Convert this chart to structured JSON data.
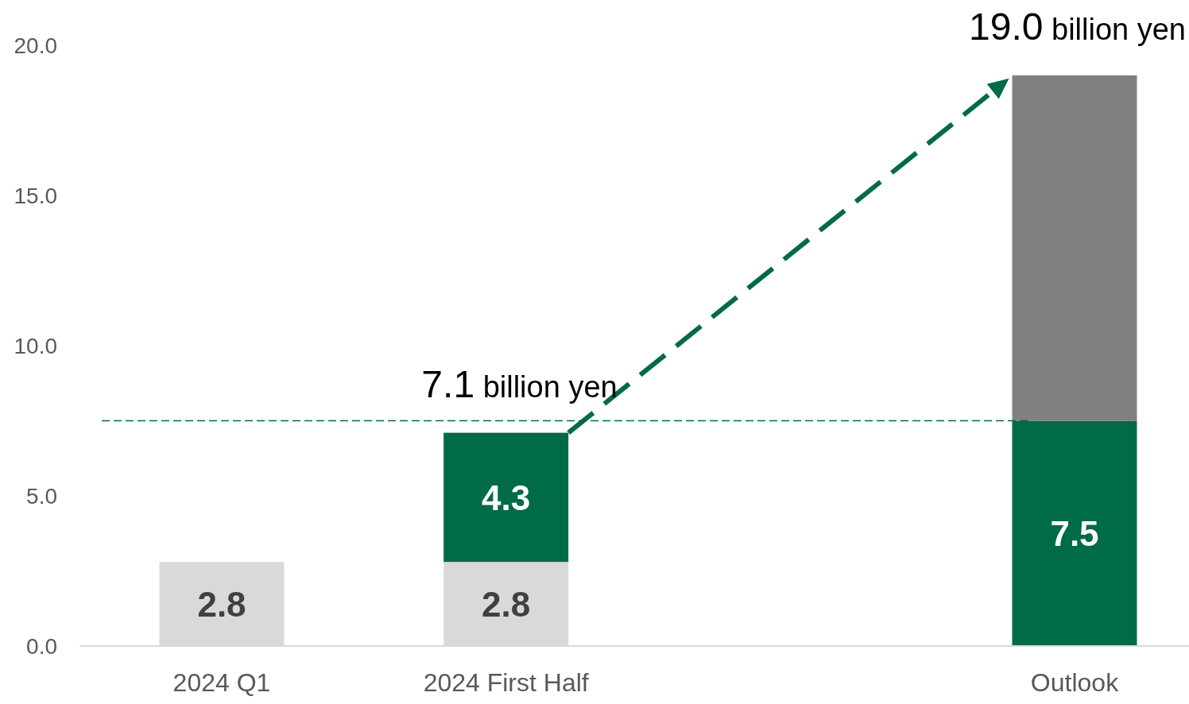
{
  "chart_data": {
    "type": "bar",
    "stacked": true,
    "categories": [
      "2024 Q1",
      "2024 First Half",
      null,
      "Outlook"
    ],
    "series": [
      {
        "color": "#d9d9d9",
        "values": [
          2.8,
          2.8,
          null,
          null
        ],
        "value_labels": [
          "2.8",
          "2.8",
          null,
          null
        ]
      },
      {
        "color": "#006b47",
        "values": [
          null,
          4.3,
          null,
          7.5
        ],
        "value_labels": [
          null,
          "4.3",
          null,
          "7.5"
        ]
      },
      {
        "color": "#808080",
        "values": [
          null,
          null,
          null,
          11.5
        ],
        "value_labels": [
          null,
          null,
          null,
          null
        ]
      }
    ],
    "totals": [
      null,
      "7.1 billion yen",
      null,
      "19.0 billion yen"
    ],
    "ylim": [
      0,
      20
    ],
    "yticks": [
      {
        "value": 0,
        "label": "0.0"
      },
      {
        "value": 5,
        "label": "5.0"
      },
      {
        "value": 10,
        "label": "10.0"
      },
      {
        "value": 15,
        "label": "15.0"
      },
      {
        "value": 20,
        "label": "20.0"
      }
    ],
    "ref_lines": [
      {
        "axis": "y",
        "value": 7.5,
        "color": "#006b47",
        "line_style": "dashed"
      }
    ]
  }
}
